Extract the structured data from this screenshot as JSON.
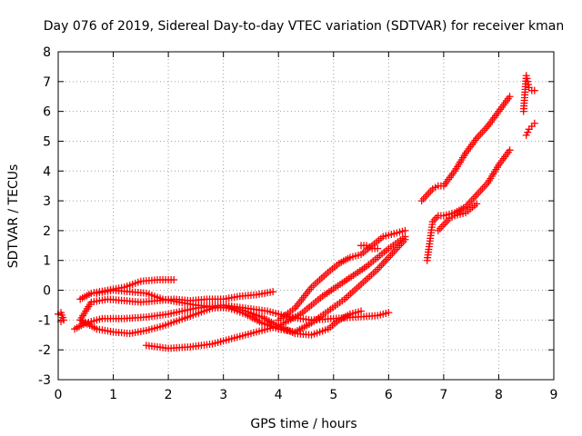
{
  "chart_data": {
    "type": "scatter",
    "title": "Day 076 of 2019, Sidereal Day-to-day VTEC variation (SDTVAR) for receiver kman",
    "xlabel": "GPS time / hours",
    "ylabel": "SDTVAR / TECUs",
    "xlim": [
      0,
      9
    ],
    "ylim": [
      -3,
      8
    ],
    "xticks": [
      "0",
      "1",
      "2",
      "3",
      "4",
      "5",
      "6",
      "7",
      "8",
      "9"
    ],
    "yticks": [
      "-3",
      "-2",
      "-1",
      "0",
      "1",
      "2",
      "3",
      "4",
      "5",
      "6",
      "7",
      "8"
    ],
    "grid": true,
    "marker": "plus",
    "color": "#ff0000",
    "series": [
      {
        "x": [
          0.0,
          0.05,
          0.1,
          0.05
        ],
        "y": [
          -0.8,
          -0.75,
          -1.0,
          -1.05
        ]
      },
      {
        "x": [
          0.3,
          0.5,
          0.8,
          1.2,
          1.6,
          2.0,
          2.5,
          3.0,
          3.4,
          3.8,
          4.2,
          4.6,
          5.0,
          5.4,
          5.8,
          6.0
        ],
        "y": [
          -1.3,
          -1.1,
          -0.95,
          -0.95,
          -0.9,
          -0.8,
          -0.6,
          -0.5,
          -0.6,
          -0.7,
          -0.9,
          -1.0,
          -0.95,
          -0.9,
          -0.85,
          -0.75
        ]
      },
      {
        "x": [
          0.4,
          0.6,
          0.9,
          1.2,
          1.5,
          1.8,
          2.1,
          2.4,
          2.7,
          3.0,
          3.3,
          3.6,
          3.9
        ],
        "y": [
          -1.0,
          -0.4,
          -0.3,
          -0.35,
          -0.4,
          -0.35,
          -0.3,
          -0.35,
          -0.3,
          -0.3,
          -0.2,
          -0.15,
          -0.05
        ]
      },
      {
        "x": [
          0.4,
          0.6,
          0.9,
          1.2,
          1.5,
          1.8,
          2.1
        ],
        "y": [
          -0.3,
          -0.1,
          0.0,
          0.1,
          0.3,
          0.35,
          0.35
        ]
      },
      {
        "x": [
          0.4,
          0.7,
          1.0,
          1.3,
          1.6,
          1.9,
          2.2,
          2.5,
          2.8,
          3.1,
          3.4,
          3.7,
          4.0,
          4.3,
          4.6,
          4.9,
          5.1,
          5.3,
          5.5
        ],
        "y": [
          -1.0,
          -1.3,
          -1.4,
          -1.45,
          -1.35,
          -1.2,
          -1.0,
          -0.8,
          -0.6,
          -0.55,
          -0.7,
          -0.9,
          -1.2,
          -1.45,
          -1.5,
          -1.3,
          -1.0,
          -0.8,
          -0.7
        ]
      },
      {
        "x": [
          0.7,
          1.0,
          1.3,
          1.6,
          1.9,
          2.2,
          2.5,
          2.8,
          3.1,
          3.4,
          3.7,
          4.0,
          4.3,
          4.6,
          4.9,
          5.2,
          5.5,
          5.8,
          6.1,
          6.3
        ],
        "y": [
          -0.1,
          0.0,
          -0.05,
          -0.1,
          -0.3,
          -0.4,
          -0.5,
          -0.55,
          -0.6,
          -0.8,
          -1.1,
          -1.3,
          -1.4,
          -1.1,
          -0.7,
          -0.3,
          0.2,
          0.7,
          1.3,
          1.7
        ]
      },
      {
        "x": [
          1.6,
          2.0,
          2.4,
          2.8,
          3.2,
          3.6,
          4.0,
          4.4,
          4.8,
          5.2,
          5.6,
          6.0,
          6.3
        ],
        "y": [
          -1.85,
          -1.95,
          -1.9,
          -1.8,
          -1.6,
          -1.4,
          -1.2,
          -0.8,
          -0.2,
          0.3,
          0.8,
          1.4,
          1.8
        ]
      },
      {
        "x": [
          4.0,
          4.3,
          4.6,
          4.9,
          5.1,
          5.3,
          5.5,
          5.7,
          5.9,
          6.1,
          6.3
        ],
        "y": [
          -1.0,
          -0.6,
          0.1,
          0.6,
          0.9,
          1.1,
          1.2,
          1.5,
          1.8,
          1.9,
          2.0
        ]
      },
      {
        "x": [
          5.5,
          5.6,
          5.7,
          5.8
        ],
        "y": [
          1.5,
          1.5,
          1.4,
          1.4
        ]
      },
      {
        "x": [
          6.7,
          6.8,
          6.9,
          7.0,
          7.2,
          7.4,
          7.6,
          7.8,
          8.0,
          8.2
        ],
        "y": [
          1.0,
          2.3,
          2.5,
          2.5,
          2.6,
          2.8,
          3.2,
          3.6,
          4.2,
          4.7
        ]
      },
      {
        "x": [
          6.6,
          6.7,
          6.8,
          6.9,
          7.0,
          7.2,
          7.4,
          7.6,
          7.8,
          8.0,
          8.2
        ],
        "y": [
          3.0,
          3.2,
          3.4,
          3.5,
          3.5,
          4.0,
          4.6,
          5.1,
          5.5,
          6.0,
          6.5
        ]
      },
      {
        "x": [
          6.9,
          7.0,
          7.1,
          7.2,
          7.4,
          7.6
        ],
        "y": [
          2.0,
          2.2,
          2.4,
          2.5,
          2.6,
          2.9
        ]
      },
      {
        "x": [
          8.45,
          8.5,
          8.55,
          8.6,
          8.65
        ],
        "y": [
          6.0,
          7.2,
          6.8,
          6.7,
          6.7
        ]
      },
      {
        "x": [
          8.5,
          8.55,
          8.6,
          8.65
        ],
        "y": [
          5.2,
          5.4,
          5.5,
          5.6
        ]
      }
    ]
  }
}
